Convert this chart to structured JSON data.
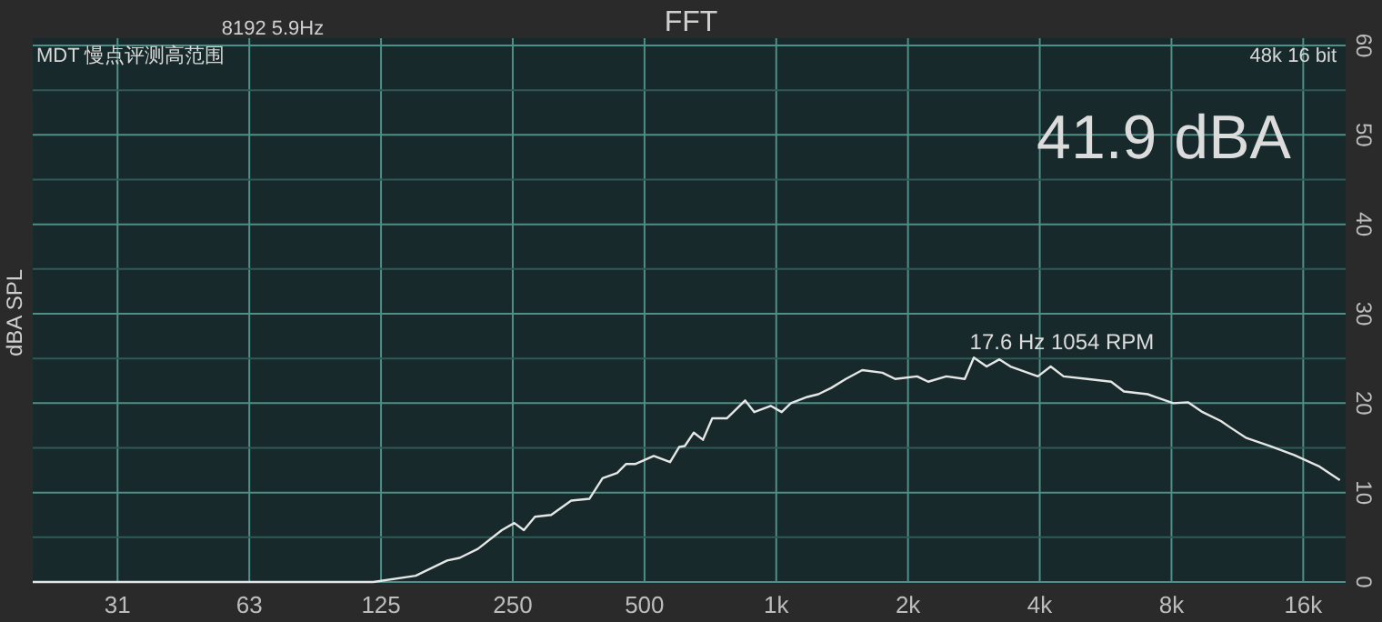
{
  "chart_data": {
    "type": "line",
    "title": "FFT",
    "ylabel": "dBA SPL",
    "annotations": [
      "8192  5.9Hz",
      "MDT 慢点评测高范围",
      "48k 16 bit",
      "41.9 dBA",
      "17.6 Hz 1054 RPM"
    ],
    "log": "x",
    "grid": true,
    "marker": "none",
    "line_style": "solid",
    "xlim": [
      20,
      20000
    ],
    "ylim": [
      0,
      60
    ],
    "xticks": [
      {
        "value": 31.25,
        "label": "31"
      },
      {
        "value": 62.5,
        "label": "63"
      },
      125,
      250,
      500,
      {
        "value": 1000,
        "label": "1k"
      },
      {
        "value": 2000,
        "label": "2k"
      },
      {
        "value": 4000,
        "label": "4k"
      },
      {
        "value": 8000,
        "label": "8k"
      },
      {
        "value": 16000,
        "label": "16k"
      }
    ],
    "yticks": [
      0,
      {
        "value": 5,
        "label": null
      },
      10,
      {
        "value": 15,
        "label": null
      },
      20,
      {
        "value": 25,
        "label": null
      },
      30,
      {
        "value": 35,
        "label": null
      },
      40,
      {
        "value": 45,
        "label": null
      },
      50,
      {
        "value": 55,
        "label": null
      },
      60
    ],
    "series": [
      {
        "color": "#e6e6e6",
        "x": [
          20,
          120,
          124,
          150,
          177,
          189,
          208,
          236,
          252,
          265,
          281,
          306,
          340,
          374,
          401,
          433,
          454,
          477,
          525,
          572,
          600,
          618,
          648,
          680,
          714,
          771,
          849,
          891,
          971,
          1029,
          1080,
          1178,
          1248,
          1335,
          1442,
          1572,
          1748,
          1870,
          2098,
          2224,
          2448,
          2696,
          2828,
          3025,
          3236,
          3429,
          3962,
          4237,
          4534,
          5137,
          5824,
          6228,
          7057,
          8078,
          8724,
          9421,
          10374,
          10885,
          11869,
          13454,
          15253,
          17450,
          19400
        ],
        "values": [
          0,
          0,
          0.1,
          0.7,
          2.4,
          2.7,
          3.7,
          5.8,
          6.6,
          5.8,
          7.3,
          7.5,
          9.1,
          9.3,
          11.6,
          12.2,
          13.2,
          13.2,
          14.1,
          13.4,
          15.1,
          15.2,
          16.7,
          15.9,
          18.3,
          18.3,
          20.3,
          19,
          19.7,
          19,
          20,
          20.7,
          21,
          21.7,
          22.7,
          23.7,
          23.4,
          22.7,
          23,
          22.4,
          23,
          22.7,
          25.1,
          24.1,
          24.9,
          24.1,
          23,
          24.1,
          23,
          22.7,
          22.4,
          21.3,
          21,
          20,
          20.1,
          19,
          18,
          17.3,
          16.1,
          15.2,
          14.2,
          12.9,
          11.4
        ]
      }
    ]
  }
}
